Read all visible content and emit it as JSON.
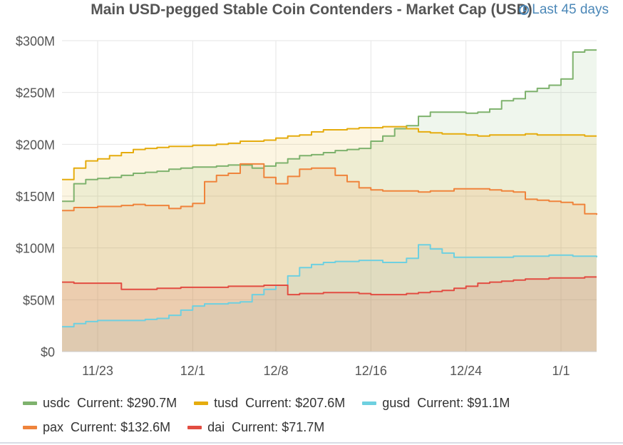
{
  "header": {
    "title": "Main USD-pegged Stable Coin Contenders - Market Cap (USD)",
    "range_label": "Last 45 days"
  },
  "legend": {
    "current_label": "Current:"
  },
  "colors": {
    "usdc": "#7eb26d",
    "tusd": "#e5ac0e",
    "gusd": "#6ed0e0",
    "pax": "#ef843c",
    "dai": "#e24d42"
  },
  "chart_data": {
    "type": "area",
    "title": "Main USD-pegged Stable Coin Contenders - Market Cap (USD)",
    "xlabel": "",
    "ylabel": "",
    "x_ticks": [
      "11/23",
      "12/1",
      "12/8",
      "12/16",
      "12/24",
      "1/1"
    ],
    "y_ticks": [
      "$0",
      "$50M",
      "$100M",
      "$150M",
      "$200M",
      "$250M",
      "$300M"
    ],
    "ylim": [
      0,
      300
    ],
    "y_unit": "$M",
    "grid": true,
    "legend_position": "bottom",
    "x_dates": [
      "11/20",
      "11/21",
      "11/22",
      "11/23",
      "11/24",
      "11/25",
      "11/26",
      "11/27",
      "11/28",
      "11/29",
      "11/30",
      "12/1",
      "12/2",
      "12/3",
      "12/4",
      "12/5",
      "12/6",
      "12/7",
      "12/8",
      "12/9",
      "12/10",
      "12/11",
      "12/12",
      "12/13",
      "12/14",
      "12/15",
      "12/16",
      "12/17",
      "12/18",
      "12/19",
      "12/20",
      "12/21",
      "12/22",
      "12/23",
      "12/24",
      "12/25",
      "12/26",
      "12/27",
      "12/28",
      "12/29",
      "12/30",
      "12/31",
      "1/1",
      "1/2",
      "1/3",
      "1/4"
    ],
    "series": [
      {
        "name": "usdc",
        "current": "$290.7M",
        "values": [
          145,
          162,
          166,
          167,
          168,
          170,
          172,
          173,
          174,
          176,
          177,
          178,
          178,
          179,
          180,
          180,
          177,
          179,
          182,
          186,
          189,
          190,
          192,
          194,
          195,
          196,
          203,
          208,
          215,
          218,
          227,
          231,
          231,
          231,
          230,
          231,
          234,
          242,
          244,
          251,
          254,
          257,
          263,
          289,
          291,
          291
        ]
      },
      {
        "name": "tusd",
        "current": "$207.6M",
        "values": [
          166,
          177,
          184,
          186,
          189,
          192,
          195,
          196,
          197,
          198,
          198,
          199,
          199,
          200,
          201,
          203,
          203,
          204,
          206,
          208,
          209,
          212,
          214,
          214,
          215,
          216,
          216,
          217,
          217,
          215,
          212,
          211,
          210,
          210,
          209,
          208,
          209,
          209,
          209,
          210,
          209,
          209,
          209,
          209,
          208,
          208
        ]
      },
      {
        "name": "gusd",
        "current": "$91.1M",
        "values": [
          24,
          27,
          29,
          30,
          30,
          30,
          30,
          31,
          32,
          35,
          40,
          44,
          46,
          46,
          47,
          48,
          55,
          60,
          64,
          73,
          81,
          84,
          86,
          87,
          87,
          88,
          88,
          86,
          86,
          90,
          103,
          99,
          95,
          91,
          91,
          91,
          91,
          91,
          92,
          92,
          92,
          93,
          93,
          92,
          92,
          91
        ]
      },
      {
        "name": "pax",
        "current": "$132.6M",
        "values": [
          136,
          139,
          139,
          140,
          140,
          141,
          142,
          141,
          141,
          138,
          140,
          143,
          164,
          170,
          172,
          181,
          181,
          168,
          162,
          169,
          176,
          177,
          177,
          170,
          164,
          158,
          156,
          155,
          155,
          155,
          154,
          155,
          155,
          157,
          157,
          157,
          156,
          155,
          154,
          147,
          146,
          145,
          144,
          142,
          133,
          132
        ]
      },
      {
        "name": "dai",
        "current": "$71.7M",
        "values": [
          67,
          66,
          66,
          66,
          66,
          60,
          60,
          60,
          61,
          61,
          62,
          62,
          62,
          62,
          63,
          63,
          63,
          64,
          64,
          55,
          56,
          56,
          57,
          57,
          57,
          56,
          55,
          55,
          55,
          56,
          57,
          58,
          59,
          61,
          63,
          66,
          67,
          68,
          69,
          70,
          70,
          71,
          71,
          71,
          72,
          72
        ]
      }
    ]
  }
}
